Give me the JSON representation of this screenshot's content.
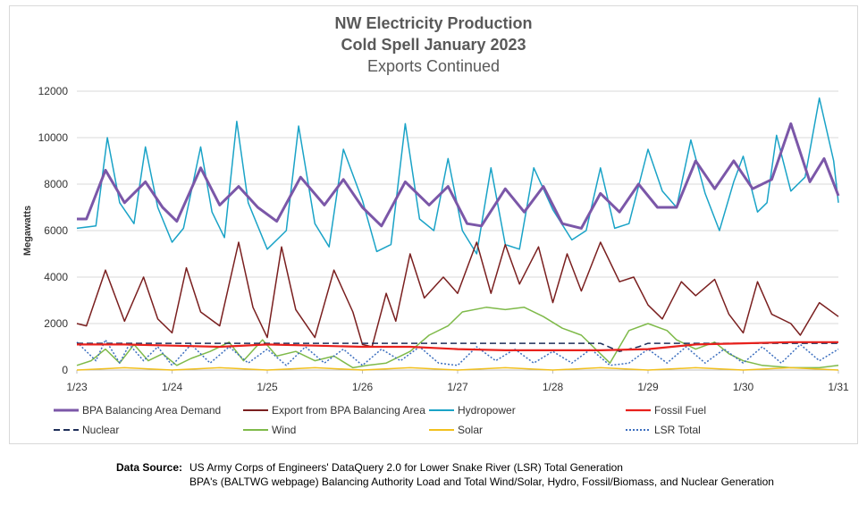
{
  "title": {
    "line1": "NW Electricity Production",
    "line2": "Cold Spell January 2023",
    "line3": "Exports Continued"
  },
  "footer": {
    "source_label": "Data Source:",
    "line1": "US Army Corps of Engineers' DataQuery 2.0 for Lower Snake River (LSR) Total Generation",
    "line2": "BPA's (BALTWG webpage) Balancing Authority Load and Total Wind/Solar, Hydro, Fossil/Biomass, and Nuclear Generation"
  },
  "chart_data": {
    "type": "line",
    "title": "NW Electricity Production — Cold Spell January 2023 — Exports Continued",
    "xlabel": "",
    "ylabel": "Megawatts",
    "ylim": [
      0,
      12000
    ],
    "xlim": [
      0,
      8
    ],
    "y_ticks": [
      "0",
      "2000",
      "4000",
      "6000",
      "8000",
      "10000",
      "12000"
    ],
    "x_ticks": [
      "1/23",
      "1/24",
      "1/25",
      "1/26",
      "1/27",
      "1/28",
      "1/29",
      "1/30",
      "1/31"
    ],
    "grid": "horizontal",
    "legend_position": "bottom",
    "x_unit": "days since 1/23",
    "series": [
      {
        "name": "Hydropower",
        "color": "#1aa3c7",
        "style": "solid",
        "x": [
          0,
          0.2,
          0.32,
          0.45,
          0.6,
          0.72,
          0.85,
          1.0,
          1.12,
          1.3,
          1.42,
          1.55,
          1.68,
          1.8,
          2.0,
          2.2,
          2.33,
          2.5,
          2.65,
          2.8,
          3.0,
          3.15,
          3.3,
          3.45,
          3.6,
          3.75,
          3.9,
          4.05,
          4.2,
          4.35,
          4.5,
          4.65,
          4.8,
          5.0,
          5.2,
          5.35,
          5.5,
          5.65,
          5.8,
          6.0,
          6.15,
          6.3,
          6.45,
          6.6,
          6.75,
          6.9,
          7.0,
          7.15,
          7.25,
          7.35,
          7.5,
          7.65,
          7.8,
          7.95,
          8.0
        ],
        "y": [
          6100,
          6200,
          10000,
          7200,
          6300,
          9600,
          7000,
          5500,
          6100,
          9600,
          6800,
          5700,
          10700,
          7200,
          5200,
          6000,
          10500,
          6300,
          5300,
          9500,
          7300,
          5100,
          5400,
          10600,
          6500,
          6000,
          9100,
          6000,
          5000,
          8700,
          5400,
          5200,
          8700,
          6900,
          5600,
          6000,
          8700,
          6100,
          6300,
          9500,
          7700,
          7000,
          9900,
          7600,
          6000,
          8100,
          9200,
          6800,
          7200,
          10100,
          7700,
          8300,
          11700,
          9000,
          7200
        ]
      },
      {
        "name": "BPA Balancing Area Demand",
        "color": "#7b57a8",
        "style": "solid",
        "x": [
          0,
          0.1,
          0.3,
          0.5,
          0.72,
          0.9,
          1.05,
          1.3,
          1.5,
          1.7,
          1.9,
          2.1,
          2.35,
          2.6,
          2.8,
          3.0,
          3.2,
          3.45,
          3.7,
          3.9,
          4.1,
          4.25,
          4.5,
          4.7,
          4.9,
          5.1,
          5.3,
          5.5,
          5.7,
          5.9,
          6.1,
          6.3,
          6.5,
          6.7,
          6.9,
          7.1,
          7.3,
          7.5,
          7.7,
          7.85,
          8.0
        ],
        "y": [
          6500,
          6500,
          8600,
          7200,
          8100,
          7000,
          6400,
          8700,
          7100,
          7900,
          7000,
          6400,
          8300,
          7100,
          8200,
          7000,
          6200,
          8100,
          7100,
          7900,
          6300,
          6200,
          7800,
          6800,
          7900,
          6300,
          6100,
          7600,
          6800,
          8000,
          7000,
          7000,
          9000,
          7800,
          9000,
          7800,
          8200,
          10600,
          8100,
          9100,
          7500
        ]
      },
      {
        "name": "Export from BPA Balancing Area",
        "color": "#7a1f1f",
        "style": "solid",
        "x": [
          0,
          0.1,
          0.3,
          0.5,
          0.7,
          0.85,
          1.0,
          1.15,
          1.3,
          1.5,
          1.7,
          1.85,
          2.0,
          2.15,
          2.3,
          2.5,
          2.7,
          2.9,
          3.0,
          3.1,
          3.25,
          3.35,
          3.5,
          3.65,
          3.85,
          4.0,
          4.2,
          4.35,
          4.5,
          4.65,
          4.85,
          5.0,
          5.15,
          5.3,
          5.5,
          5.7,
          5.85,
          6.0,
          6.15,
          6.35,
          6.5,
          6.7,
          6.85,
          7.0,
          7.15,
          7.3,
          7.5,
          7.6,
          7.8,
          8.0
        ],
        "y": [
          2000,
          1900,
          4300,
          2100,
          4000,
          2200,
          1600,
          4400,
          2500,
          1900,
          5500,
          2700,
          1400,
          5300,
          2600,
          1400,
          4300,
          2500,
          1100,
          1000,
          3300,
          2100,
          5000,
          3100,
          4000,
          3300,
          5500,
          3300,
          5400,
          3700,
          5300,
          2900,
          5000,
          3400,
          5500,
          3800,
          4000,
          2800,
          2200,
          3800,
          3200,
          3900,
          2400,
          1600,
          3800,
          2400,
          2000,
          1500,
          2900,
          2300
        ]
      },
      {
        "name": "Wind",
        "color": "#7fba4a",
        "style": "solid",
        "x": [
          0,
          0.15,
          0.3,
          0.45,
          0.6,
          0.75,
          0.9,
          1.05,
          1.2,
          1.4,
          1.6,
          1.75,
          1.95,
          2.1,
          2.3,
          2.5,
          2.7,
          2.9,
          3.05,
          3.25,
          3.5,
          3.7,
          3.9,
          4.05,
          4.3,
          4.5,
          4.7,
          4.9,
          5.1,
          5.3,
          5.45,
          5.6,
          5.8,
          6.0,
          6.2,
          6.3,
          6.5,
          6.7,
          6.85,
          7.0,
          7.2,
          7.5,
          7.8,
          8.0
        ],
        "y": [
          200,
          400,
          900,
          300,
          1100,
          400,
          700,
          200,
          500,
          800,
          1200,
          400,
          1300,
          600,
          800,
          400,
          600,
          100,
          200,
          300,
          800,
          1500,
          1900,
          2500,
          2700,
          2600,
          2700,
          2300,
          1800,
          1500,
          900,
          300,
          1700,
          2000,
          1700,
          1300,
          900,
          1200,
          700,
          400,
          200,
          100,
          100,
          200
        ]
      },
      {
        "name": "LSR Total",
        "color": "#3d6fbf",
        "style": "dotted",
        "x": [
          0,
          0.2,
          0.3,
          0.45,
          0.55,
          0.7,
          0.85,
          1.0,
          1.2,
          1.4,
          1.6,
          1.8,
          2.0,
          2.2,
          2.4,
          2.6,
          2.8,
          3.0,
          3.2,
          3.4,
          3.6,
          3.8,
          4.0,
          4.2,
          4.4,
          4.6,
          4.8,
          5.0,
          5.2,
          5.4,
          5.6,
          5.8,
          6.0,
          6.2,
          6.4,
          6.6,
          6.8,
          7.0,
          7.2,
          7.4,
          7.6,
          7.8,
          8.0
        ],
        "y": [
          1200,
          400,
          1300,
          300,
          1100,
          400,
          1000,
          200,
          1100,
          300,
          1000,
          300,
          900,
          200,
          1000,
          300,
          900,
          200,
          900,
          400,
          1000,
          300,
          200,
          1000,
          400,
          900,
          300,
          800,
          300,
          900,
          200,
          300,
          900,
          300,
          1000,
          300,
          900,
          300,
          1000,
          300,
          1100,
          400,
          900
        ]
      },
      {
        "name": "Nuclear",
        "color": "#1f2f5a",
        "style": "dashed",
        "x": [
          0,
          2.0,
          3.8,
          5.5,
          5.7,
          5.9,
          6.0,
          6.5,
          7.0,
          8.0
        ],
        "y": [
          1150,
          1150,
          1150,
          1150,
          800,
          1000,
          1150,
          1150,
          1150,
          1150
        ]
      },
      {
        "name": "Fossil Fuel",
        "color": "#e8211c",
        "style": "solid",
        "x": [
          0,
          0.5,
          1.0,
          1.5,
          2.0,
          2.5,
          3.0,
          3.5,
          4.0,
          4.5,
          5.0,
          5.5,
          6.0,
          6.5,
          7.0,
          7.5,
          8.0
        ],
        "y": [
          1100,
          1100,
          1050,
          1000,
          1100,
          1050,
          1000,
          1000,
          900,
          850,
          850,
          850,
          900,
          1100,
          1150,
          1200,
          1200
        ]
      },
      {
        "name": "Solar",
        "color": "#f2c01e",
        "style": "solid",
        "x": [
          0,
          0.5,
          1.0,
          1.5,
          2.0,
          2.5,
          3.0,
          3.5,
          4.0,
          4.5,
          5.0,
          5.5,
          6.0,
          6.5,
          7.0,
          7.5,
          8.0
        ],
        "y": [
          0,
          100,
          0,
          100,
          0,
          100,
          0,
          100,
          0,
          100,
          0,
          100,
          0,
          100,
          0,
          100,
          0
        ]
      }
    ]
  }
}
